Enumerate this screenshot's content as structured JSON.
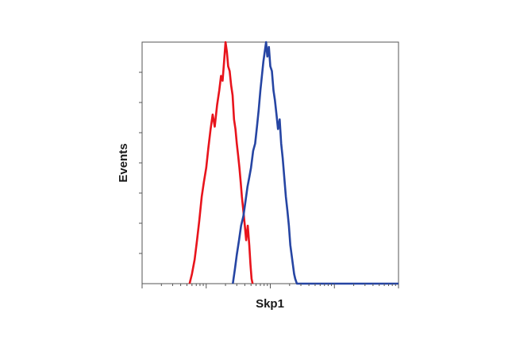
{
  "chart_data": {
    "type": "line",
    "title": "",
    "xlabel": "Skp1",
    "ylabel": "Events",
    "x_scale": "log",
    "xlim": [
      10,
      100000
    ],
    "ylim": [
      0,
      100
    ],
    "grid": false,
    "legend": "none",
    "y_minor_ticks": 7,
    "series": [
      {
        "color": "#e8141c",
        "points": [
          [
            55,
            0
          ],
          [
            60,
            4
          ],
          [
            66,
            10
          ],
          [
            72,
            18
          ],
          [
            78,
            26
          ],
          [
            85,
            36
          ],
          [
            92,
            42
          ],
          [
            100,
            48
          ],
          [
            108,
            56
          ],
          [
            117,
            64
          ],
          [
            126,
            70
          ],
          [
            136,
            65
          ],
          [
            148,
            74
          ],
          [
            160,
            80
          ],
          [
            170,
            86
          ],
          [
            180,
            84
          ],
          [
            190,
            92
          ],
          [
            200,
            100
          ],
          [
            210,
            96
          ],
          [
            220,
            90
          ],
          [
            232,
            88
          ],
          [
            245,
            82
          ],
          [
            258,
            78
          ],
          [
            272,
            68
          ],
          [
            286,
            64
          ],
          [
            300,
            58
          ],
          [
            315,
            53
          ],
          [
            330,
            48
          ],
          [
            345,
            42
          ],
          [
            360,
            36
          ],
          [
            380,
            30
          ],
          [
            400,
            24
          ],
          [
            420,
            18
          ],
          [
            445,
            24
          ],
          [
            470,
            16
          ],
          [
            490,
            8
          ],
          [
            510,
            2
          ],
          [
            530,
            0
          ]
        ]
      },
      {
        "color": "#2645a3",
        "points": [
          [
            260,
            0
          ],
          [
            280,
            6
          ],
          [
            300,
            12
          ],
          [
            325,
            18
          ],
          [
            350,
            24
          ],
          [
            380,
            28
          ],
          [
            410,
            34
          ],
          [
            440,
            40
          ],
          [
            470,
            44
          ],
          [
            500,
            48
          ],
          [
            540,
            55
          ],
          [
            580,
            58
          ],
          [
            620,
            65
          ],
          [
            660,
            72
          ],
          [
            700,
            80
          ],
          [
            740,
            86
          ],
          [
            780,
            92
          ],
          [
            820,
            96
          ],
          [
            860,
            100
          ],
          [
            900,
            94
          ],
          [
            950,
            98
          ],
          [
            1000,
            90
          ],
          [
            1060,
            88
          ],
          [
            1120,
            80
          ],
          [
            1180,
            76
          ],
          [
            1250,
            70
          ],
          [
            1320,
            64
          ],
          [
            1400,
            68
          ],
          [
            1480,
            58
          ],
          [
            1560,
            52
          ],
          [
            1650,
            44
          ],
          [
            1750,
            36
          ],
          [
            1850,
            30
          ],
          [
            1950,
            24
          ],
          [
            2050,
            16
          ],
          [
            2150,
            12
          ],
          [
            2250,
            8
          ],
          [
            2350,
            4
          ],
          [
            2450,
            2
          ],
          [
            2600,
            0
          ],
          [
            5000,
            0
          ],
          [
            100000,
            0
          ]
        ]
      }
    ]
  }
}
